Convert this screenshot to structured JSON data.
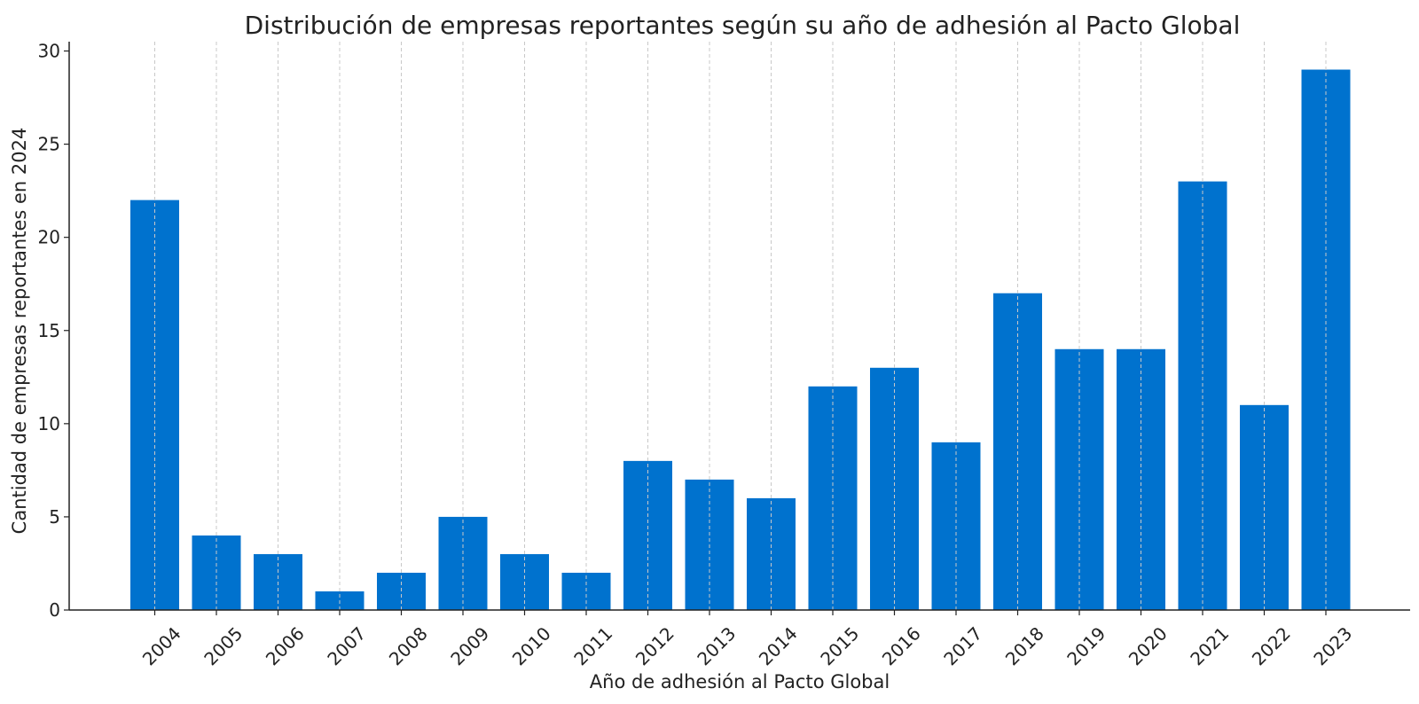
{
  "chart_data": {
    "type": "bar",
    "title": "Distribución de empresas reportantes según su año de adhesión al Pacto Global",
    "xlabel": "Año de adhesión al Pacto Global",
    "ylabel": "Cantidad de empresas reportantes en 2024",
    "categories": [
      "2004",
      "2005",
      "2006",
      "2007",
      "2008",
      "2009",
      "2010",
      "2011",
      "2012",
      "2013",
      "2014",
      "2015",
      "2016",
      "2017",
      "2018",
      "2019",
      "2020",
      "2021",
      "2022",
      "2023"
    ],
    "values": [
      22,
      4,
      3,
      1,
      2,
      5,
      3,
      2,
      8,
      7,
      6,
      12,
      13,
      9,
      17,
      14,
      14,
      23,
      11,
      29
    ],
    "ylim": [
      0,
      30.5
    ],
    "yticks": [
      0,
      5,
      10,
      15,
      20,
      25,
      30
    ],
    "grid": "vertical dashed",
    "bar_color": "#0072ce"
  }
}
